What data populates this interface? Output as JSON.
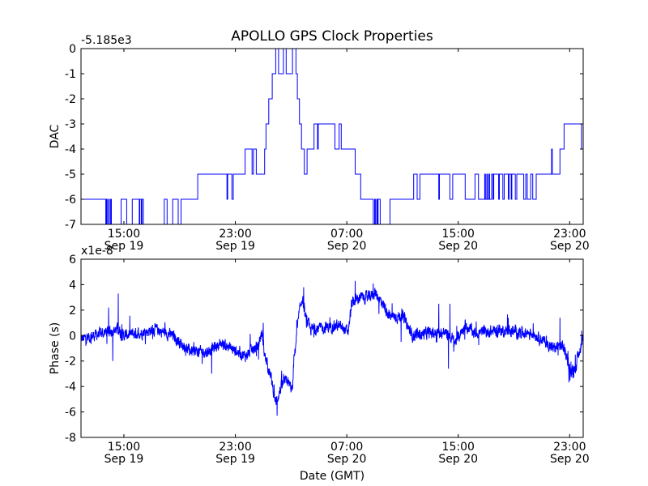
{
  "figure_title": "APOLLO GPS Clock Properties",
  "xlabel": "Date (GMT)",
  "colors": {
    "line": "#0000ff",
    "axes": "#000000",
    "background": "#ffffff"
  },
  "chart_data": [
    {
      "type": "line",
      "name": "dac",
      "ylabel": "DAC",
      "offset_text": "-5.185e3",
      "ylim": [
        -7,
        0
      ],
      "yticks": [
        {
          "value": 0,
          "label": "0"
        },
        {
          "value": -1,
          "label": "-1"
        },
        {
          "value": -2,
          "label": "-2"
        },
        {
          "value": -3,
          "label": "-3"
        },
        {
          "value": -4,
          "label": "-4"
        },
        {
          "value": -5,
          "label": "-5"
        },
        {
          "value": -6,
          "label": "-6"
        },
        {
          "value": -7,
          "label": "-7"
        }
      ],
      "x_units": "hours since Sep 19 00:00 GMT",
      "xlim": [
        11.92,
        47.97
      ],
      "xticks": [
        {
          "value": 15,
          "time": "15:00",
          "date": "Sep 19"
        },
        {
          "value": 23,
          "time": "23:00",
          "date": "Sep 19"
        },
        {
          "value": 31,
          "time": "07:00",
          "date": "Sep 20"
        },
        {
          "value": 39,
          "time": "15:00",
          "date": "Sep 20"
        },
        {
          "value": 47,
          "time": "23:00",
          "date": "Sep 20"
        }
      ],
      "step_series": [
        [
          11.92,
          -6
        ],
        [
          13.7,
          -7
        ],
        [
          13.75,
          -6
        ],
        [
          13.8,
          -7
        ],
        [
          13.9,
          -6
        ],
        [
          13.95,
          -7
        ],
        [
          14.05,
          -6
        ],
        [
          14.1,
          -7
        ],
        [
          14.8,
          -6
        ],
        [
          15.2,
          -7
        ],
        [
          15.6,
          -6
        ],
        [
          16.1,
          -7
        ],
        [
          16.15,
          -6
        ],
        [
          16.25,
          -7
        ],
        [
          16.3,
          -6
        ],
        [
          16.4,
          -7
        ],
        [
          17.9,
          -6
        ],
        [
          18.1,
          -7
        ],
        [
          18.5,
          -6
        ],
        [
          18.9,
          -7
        ],
        [
          19.1,
          -6
        ],
        [
          20.3,
          -5
        ],
        [
          22.4,
          -6
        ],
        [
          22.45,
          -5
        ],
        [
          22.75,
          -6
        ],
        [
          22.85,
          -5
        ],
        [
          23.7,
          -4
        ],
        [
          24.2,
          -5
        ],
        [
          24.3,
          -4
        ],
        [
          24.5,
          -5
        ],
        [
          25.1,
          -4
        ],
        [
          25.2,
          -3
        ],
        [
          25.4,
          -2
        ],
        [
          25.65,
          -1
        ],
        [
          25.9,
          0
        ],
        [
          26.1,
          -1
        ],
        [
          26.45,
          0
        ],
        [
          26.65,
          -1
        ],
        [
          27.1,
          0
        ],
        [
          27.35,
          -1
        ],
        [
          27.45,
          -2
        ],
        [
          27.6,
          -3
        ],
        [
          27.75,
          -4
        ],
        [
          27.95,
          -5
        ],
        [
          28.15,
          -4
        ],
        [
          28.65,
          -3
        ],
        [
          28.9,
          -4
        ],
        [
          28.95,
          -3
        ],
        [
          30.15,
          -4
        ],
        [
          30.45,
          -3
        ],
        [
          30.6,
          -4
        ],
        [
          31.6,
          -5
        ],
        [
          32.0,
          -6
        ],
        [
          32.9,
          -7
        ],
        [
          33.0,
          -6
        ],
        [
          33.05,
          -7
        ],
        [
          33.15,
          -6
        ],
        [
          33.2,
          -7
        ],
        [
          33.25,
          -6
        ],
        [
          33.4,
          -7
        ],
        [
          34.1,
          -6
        ],
        [
          35.8,
          -5
        ],
        [
          36.05,
          -6
        ],
        [
          36.25,
          -5
        ],
        [
          37.6,
          -6
        ],
        [
          37.65,
          -5
        ],
        [
          38.4,
          -6
        ],
        [
          38.6,
          -5
        ],
        [
          39.5,
          -6
        ],
        [
          40.2,
          -5
        ],
        [
          40.45,
          -6
        ],
        [
          40.9,
          -5
        ],
        [
          40.95,
          -6
        ],
        [
          41.05,
          -5
        ],
        [
          41.1,
          -6
        ],
        [
          41.2,
          -5
        ],
        [
          41.25,
          -6
        ],
        [
          41.4,
          -5
        ],
        [
          41.5,
          -6
        ],
        [
          41.55,
          -5
        ],
        [
          41.9,
          -6
        ],
        [
          41.95,
          -5
        ],
        [
          42.2,
          -6
        ],
        [
          42.3,
          -5
        ],
        [
          42.6,
          -6
        ],
        [
          42.65,
          -5
        ],
        [
          42.8,
          -6
        ],
        [
          42.85,
          -5
        ],
        [
          43.1,
          -6
        ],
        [
          43.2,
          -5
        ],
        [
          43.7,
          -6
        ],
        [
          43.85,
          -5
        ],
        [
          43.95,
          -6
        ],
        [
          44.2,
          -5
        ],
        [
          44.35,
          -6
        ],
        [
          44.6,
          -5
        ],
        [
          45.7,
          -4
        ],
        [
          45.75,
          -5
        ],
        [
          46.3,
          -4
        ],
        [
          46.6,
          -3
        ],
        [
          47.85,
          -4
        ],
        [
          47.97,
          -4
        ]
      ]
    },
    {
      "type": "line",
      "name": "phase",
      "ylabel": "Phase (s)",
      "offset_text": "x1e-8",
      "ylim": [
        -8,
        6
      ],
      "yticks": [
        {
          "value": 6,
          "label": "6"
        },
        {
          "value": 4,
          "label": "4"
        },
        {
          "value": 2,
          "label": "2"
        },
        {
          "value": 0,
          "label": "0"
        },
        {
          "value": -2,
          "label": "-2"
        },
        {
          "value": -4,
          "label": "-4"
        },
        {
          "value": -6,
          "label": "-6"
        },
        {
          "value": -8,
          "label": "-8"
        }
      ],
      "x_units": "hours since Sep 19 00:00 GMT",
      "xlim": [
        11.92,
        47.97
      ],
      "xticks": [
        {
          "value": 15,
          "time": "15:00",
          "date": "Sep 19"
        },
        {
          "value": 23,
          "time": "23:00",
          "date": "Sep 19"
        },
        {
          "value": 31,
          "time": "07:00",
          "date": "Sep 20"
        },
        {
          "value": 39,
          "time": "15:00",
          "date": "Sep 20"
        },
        {
          "value": 47,
          "time": "23:00",
          "date": "Sep 20"
        }
      ],
      "y_scale": "1e-8 s",
      "trend_points": [
        [
          11.92,
          -0.3
        ],
        [
          13.77,
          0.3
        ],
        [
          14.6,
          0.5
        ],
        [
          14.95,
          0.0
        ],
        [
          16.1,
          0.2
        ],
        [
          17.3,
          0.5
        ],
        [
          18.5,
          0.0
        ],
        [
          19.7,
          -1.2
        ],
        [
          20.9,
          -1.3
        ],
        [
          22.0,
          -0.6
        ],
        [
          23.2,
          -1.3
        ],
        [
          23.7,
          -1.6
        ],
        [
          24.65,
          -0.8
        ],
        [
          24.9,
          0.3
        ],
        [
          25.1,
          -1.5
        ],
        [
          25.6,
          -3.5
        ],
        [
          25.9,
          -5.3
        ],
        [
          26.3,
          -4.0
        ],
        [
          26.7,
          -3.5
        ],
        [
          27.1,
          -4.3
        ],
        [
          27.2,
          -2.0
        ],
        [
          27.55,
          1.5
        ],
        [
          27.8,
          3.0
        ],
        [
          28.0,
          1.5
        ],
        [
          28.4,
          0.5
        ],
        [
          29.3,
          0.6
        ],
        [
          30.3,
          0.8
        ],
        [
          31.1,
          0.3
        ],
        [
          31.35,
          2.5
        ],
        [
          31.9,
          3.0
        ],
        [
          32.6,
          3.0
        ],
        [
          33.0,
          3.4
        ],
        [
          33.6,
          2.5
        ],
        [
          34.1,
          1.5
        ],
        [
          35.0,
          1.5
        ],
        [
          35.7,
          0.0
        ],
        [
          36.9,
          0.2
        ],
        [
          38.1,
          0.2
        ],
        [
          38.8,
          -0.5
        ],
        [
          39.5,
          0.8
        ],
        [
          40.2,
          0.2
        ],
        [
          42.1,
          0.4
        ],
        [
          44.4,
          0.2
        ],
        [
          45.8,
          -1.0
        ],
        [
          46.5,
          -0.8
        ],
        [
          46.75,
          -1.5
        ],
        [
          47.1,
          -3.0
        ],
        [
          47.5,
          -2.2
        ],
        [
          47.97,
          0.0
        ]
      ],
      "spikes": [
        [
          14.6,
          3.3
        ],
        [
          13.9,
          2.2
        ],
        [
          14.2,
          -2.0
        ],
        [
          21.3,
          -3.0
        ],
        [
          25.0,
          1.0
        ],
        [
          26.0,
          -6.3
        ],
        [
          27.9,
          3.8
        ],
        [
          31.6,
          4.3
        ],
        [
          32.9,
          4.1
        ],
        [
          33.3,
          1.7
        ],
        [
          34.9,
          -0.5
        ],
        [
          37.6,
          2.5
        ],
        [
          38.3,
          -2.6
        ],
        [
          38.4,
          2.5
        ],
        [
          46.3,
          1.4
        ],
        [
          47.3,
          -3.3
        ]
      ],
      "noise_amplitude": 0.45
    }
  ]
}
